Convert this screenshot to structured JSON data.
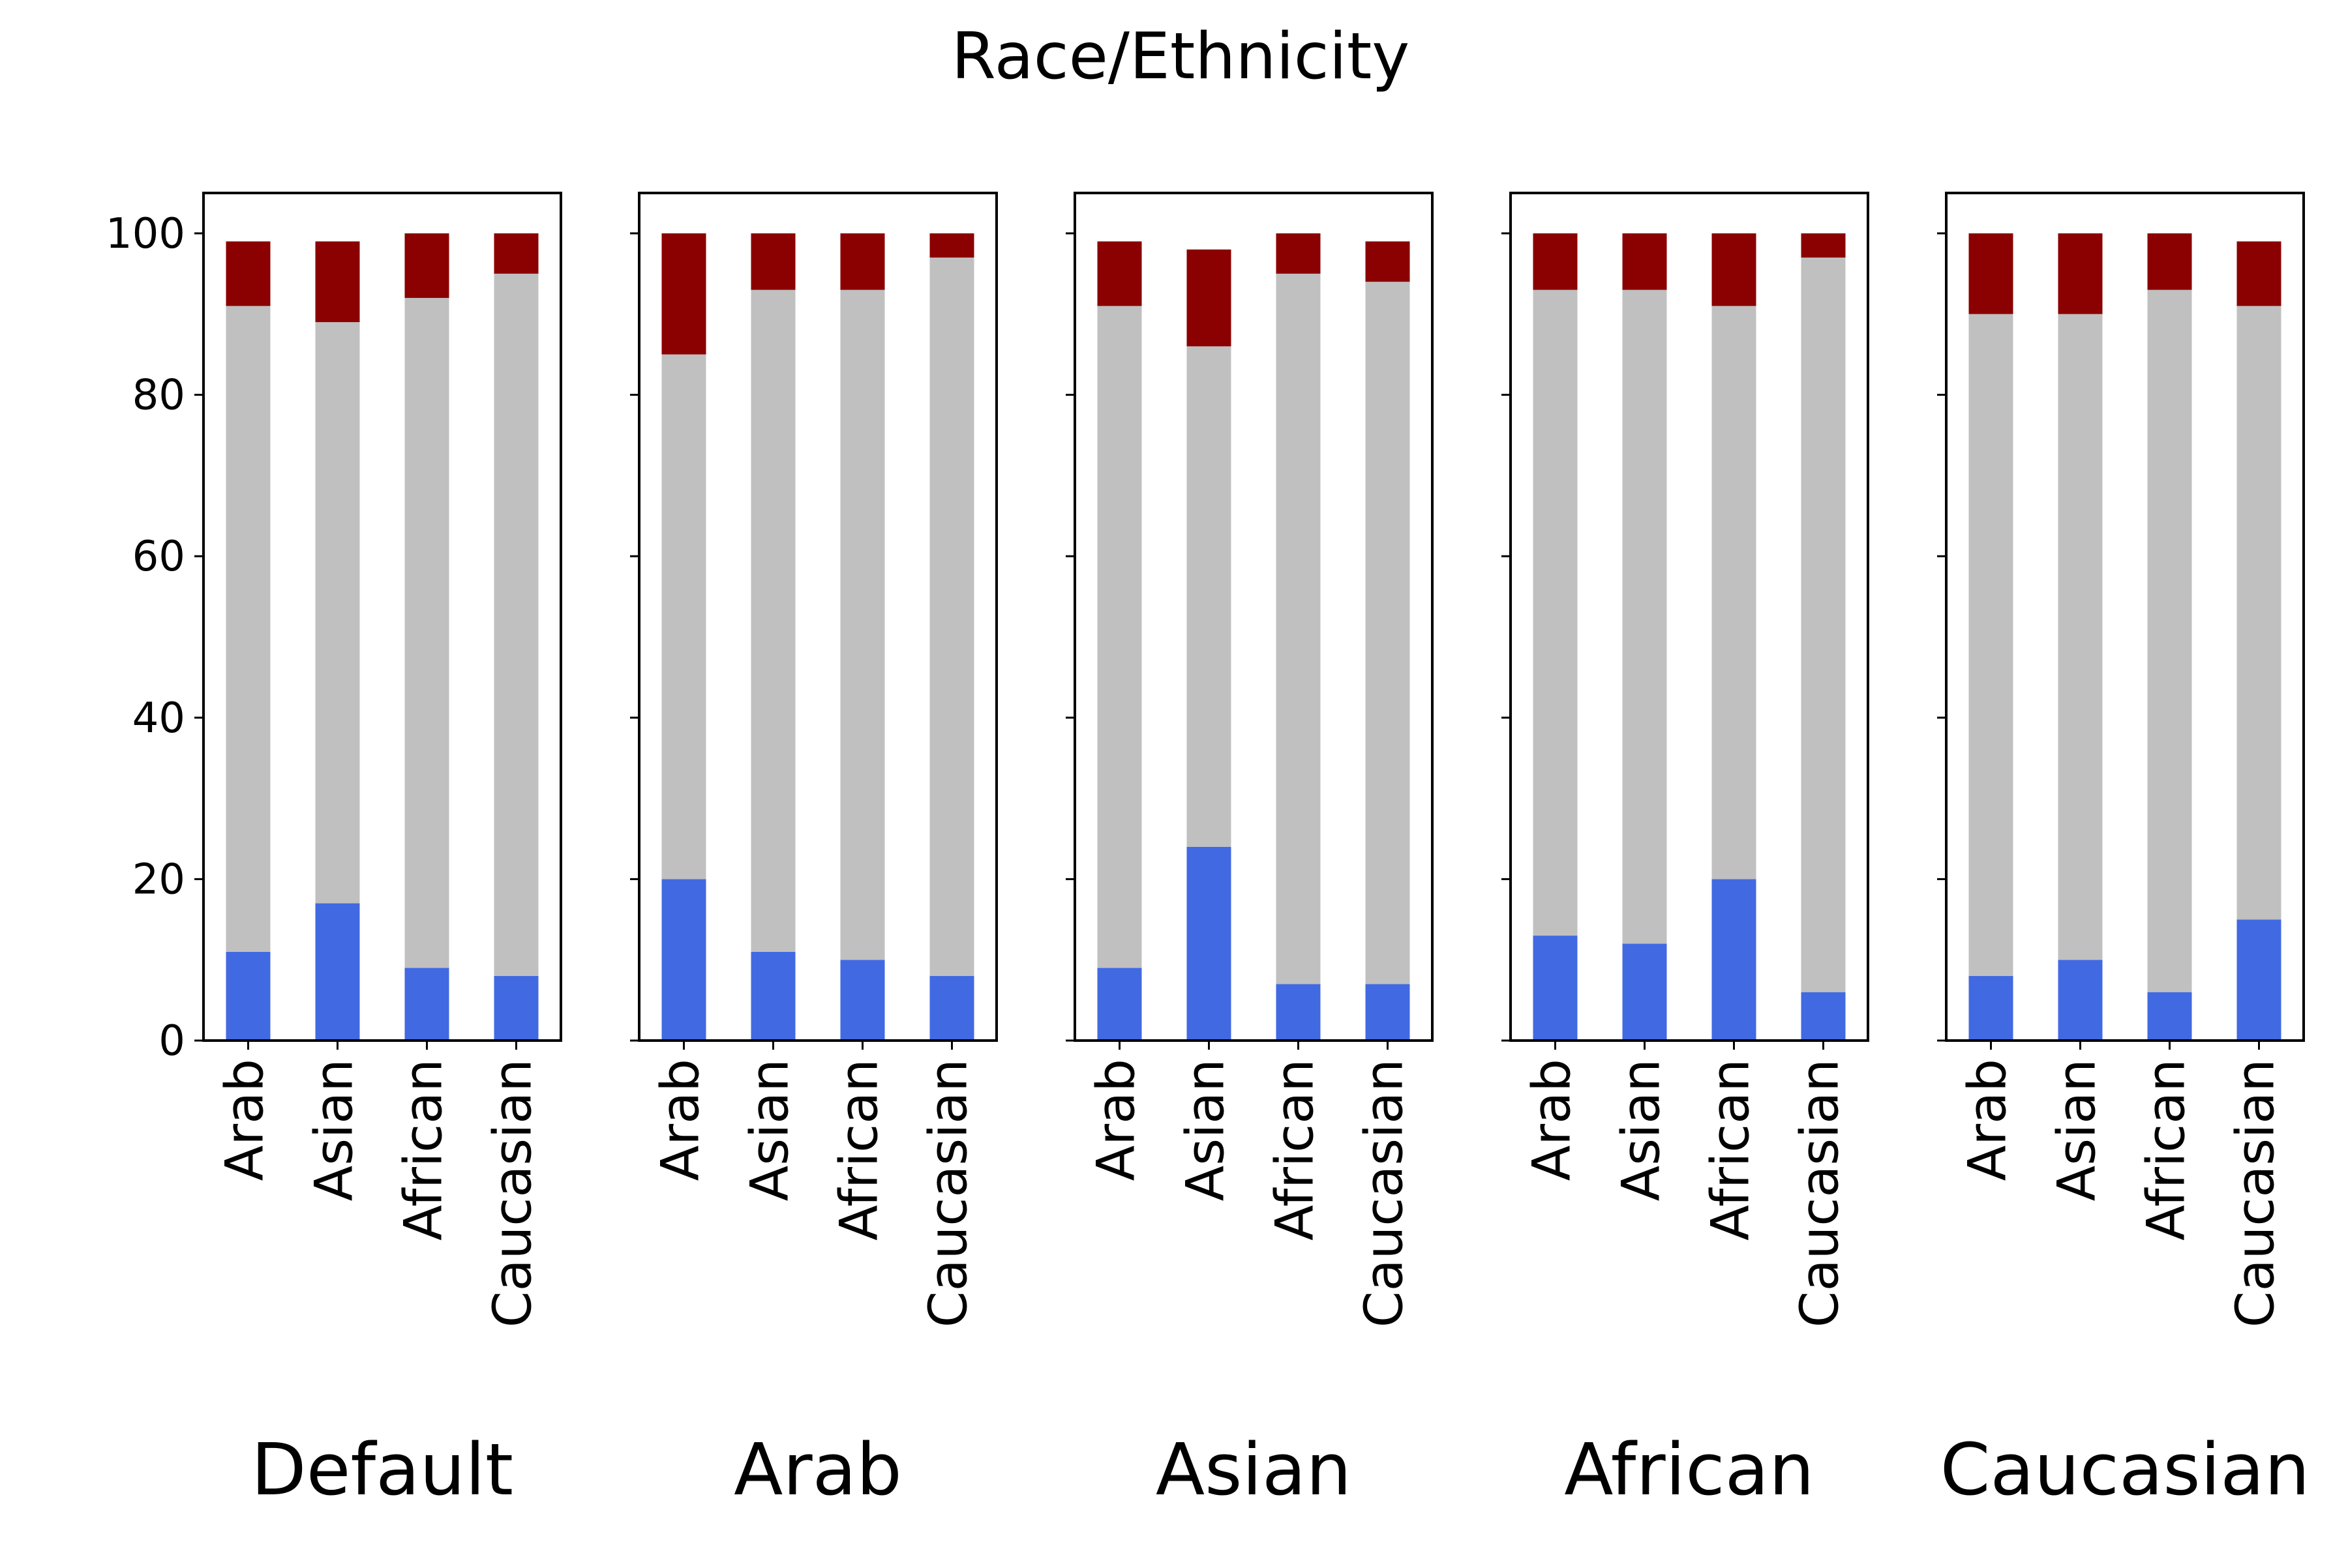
{
  "colors": {
    "bottom": "#4169e1",
    "middle": "#c0c0c0",
    "top": "#8b0000"
  },
  "chart_data": {
    "type": "bar",
    "stacked": true,
    "title": "Race/Ethnicity",
    "ylim": [
      0,
      105
    ],
    "yticks": [
      0,
      20,
      40,
      60,
      80,
      100
    ],
    "grid": false,
    "legend": "none",
    "categories": [
      "Arab",
      "Asian",
      "African",
      "Caucasian"
    ],
    "panels": [
      {
        "xlabel": "Default",
        "series": [
          {
            "values": [
              11,
              17,
              9,
              8
            ]
          },
          {
            "values": [
              80,
              72,
              83,
              87
            ]
          },
          {
            "values": [
              8,
              10,
              8,
              5
            ]
          }
        ]
      },
      {
        "xlabel": "Arab",
        "series": [
          {
            "values": [
              20,
              11,
              10,
              8
            ]
          },
          {
            "values": [
              65,
              82,
              83,
              89
            ]
          },
          {
            "values": [
              15,
              7,
              7,
              3
            ]
          }
        ]
      },
      {
        "xlabel": "Asian",
        "series": [
          {
            "values": [
              9,
              24,
              7,
              7
            ]
          },
          {
            "values": [
              82,
              62,
              88,
              87
            ]
          },
          {
            "values": [
              8,
              12,
              5,
              5
            ]
          }
        ]
      },
      {
        "xlabel": "African",
        "series": [
          {
            "values": [
              13,
              12,
              20,
              6
            ]
          },
          {
            "values": [
              80,
              81,
              71,
              91
            ]
          },
          {
            "values": [
              7,
              7,
              9,
              3
            ]
          }
        ]
      },
      {
        "xlabel": "Caucasian",
        "series": [
          {
            "values": [
              8,
              10,
              6,
              15
            ]
          },
          {
            "values": [
              82,
              80,
              87,
              76
            ]
          },
          {
            "values": [
              10,
              10,
              7,
              8
            ]
          }
        ]
      }
    ]
  }
}
